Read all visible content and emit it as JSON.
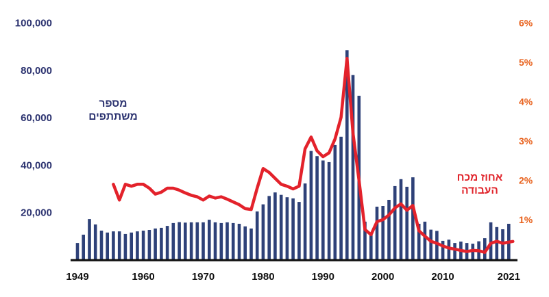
{
  "chart_data": {
    "type": "bar",
    "subtype": "bar+line dual-axis combo",
    "title": "",
    "grid": false,
    "legend_position": "inline-annotations",
    "x_axis": {
      "tick_labels": [
        "1949",
        "1960",
        "1970",
        "1980",
        "1990",
        "2000",
        "2010",
        "2021"
      ],
      "tick_years": [
        1949,
        1960,
        1970,
        1980,
        1990,
        2000,
        2010,
        2021
      ],
      "range": [
        1949,
        2021
      ],
      "text_color": "#111111"
    },
    "y_axis_left": {
      "title": "מספר משתתפים",
      "tick_labels": [
        "20,000",
        "40,000",
        "60,000",
        "80,000",
        "100,000"
      ],
      "tick_values": [
        20000,
        40000,
        60000,
        80000,
        100000
      ],
      "min": 0,
      "max": 100000,
      "text_color": "#2c3370"
    },
    "y_axis_right": {
      "title": "אחוז מכח העבודה",
      "tick_labels": [
        "1%",
        "2%",
        "3%",
        "4%",
        "5%",
        "6%"
      ],
      "tick_values": [
        1,
        2,
        3,
        4,
        5,
        6
      ],
      "min": 0,
      "max": 6,
      "text_color": "#e8611c"
    },
    "series": [
      {
        "name": "מספר משתתפים",
        "type": "bar",
        "axis": "left",
        "color": "#2e4178",
        "years": [
          1949,
          1950,
          1951,
          1952,
          1953,
          1954,
          1955,
          1956,
          1957,
          1958,
          1959,
          1960,
          1961,
          1962,
          1963,
          1964,
          1965,
          1966,
          1967,
          1968,
          1969,
          1970,
          1971,
          1972,
          1973,
          1974,
          1975,
          1976,
          1977,
          1978,
          1979,
          1980,
          1981,
          1982,
          1983,
          1984,
          1985,
          1986,
          1987,
          1988,
          1989,
          1990,
          1991,
          1992,
          1993,
          1994,
          1995,
          1996,
          1997,
          1998,
          1999,
          2000,
          2001,
          2002,
          2003,
          2004,
          2005,
          2006,
          2007,
          2008,
          2009,
          2010,
          2011,
          2012,
          2013,
          2014,
          2015,
          2016,
          2017,
          2018,
          2019,
          2020,
          2021
        ],
        "values": [
          7200,
          10700,
          17300,
          15000,
          12400,
          11600,
          12100,
          12100,
          11000,
          11600,
          12100,
          12400,
          12700,
          13300,
          13600,
          14400,
          15600,
          16000,
          15800,
          15900,
          15900,
          15900,
          17000,
          15900,
          15600,
          15900,
          15600,
          15300,
          14200,
          13300,
          20500,
          23500,
          27000,
          28500,
          27500,
          26500,
          26000,
          24500,
          32300,
          46000,
          43800,
          42000,
          41300,
          48500,
          52000,
          88500,
          78000,
          69300,
          16200,
          10700,
          22500,
          22800,
          25400,
          31200,
          34100,
          30900,
          34900,
          15300,
          16200,
          12800,
          12300,
          8100,
          8600,
          7200,
          7800,
          7200,
          6900,
          7900,
          9200,
          15900,
          13900,
          13000,
          15300
        ]
      },
      {
        "name": "אחוז מכח העבודה",
        "type": "line",
        "axis": "right",
        "color": "#e3222b",
        "years": [
          1955,
          1956,
          1957,
          1958,
          1959,
          1960,
          1961,
          1962,
          1963,
          1964,
          1965,
          1966,
          1967,
          1968,
          1969,
          1970,
          1971,
          1972,
          1973,
          1974,
          1975,
          1976,
          1977,
          1978,
          1979,
          1980,
          1981,
          1982,
          1983,
          1984,
          1985,
          1986,
          1987,
          1988,
          1989,
          1990,
          1991,
          1992,
          1993,
          1994,
          1995,
          1996,
          1997,
          1998,
          1999,
          2000,
          2001,
          2002,
          2003,
          2004,
          2005,
          2006,
          2007,
          2008,
          2009,
          2010,
          2011,
          2012,
          2013,
          2014,
          2015,
          2016,
          2017,
          2018,
          2019,
          2020,
          2021
        ],
        "values": [
          1.9,
          1.5,
          1.9,
          1.85,
          1.9,
          1.9,
          1.8,
          1.65,
          1.7,
          1.8,
          1.8,
          1.75,
          1.68,
          1.62,
          1.58,
          1.5,
          1.6,
          1.55,
          1.58,
          1.52,
          1.45,
          1.38,
          1.28,
          1.26,
          1.8,
          2.3,
          2.2,
          2.05,
          1.9,
          1.85,
          1.78,
          1.85,
          2.8,
          3.1,
          2.75,
          2.6,
          2.7,
          3.05,
          3.6,
          5.1,
          3.2,
          2.0,
          0.75,
          0.62,
          0.95,
          1.0,
          1.12,
          1.3,
          1.4,
          1.24,
          1.36,
          0.72,
          0.58,
          0.45,
          0.4,
          0.33,
          0.28,
          0.25,
          0.22,
          0.19,
          0.22,
          0.21,
          0.17,
          0.4,
          0.45,
          0.4,
          0.43
        ]
      }
    ]
  },
  "series_labels": {
    "bars": {
      "line1": "מספר",
      "line2": "משתתפים"
    },
    "line": {
      "line1": "אחוז מכח",
      "line2": "העבודה"
    }
  }
}
